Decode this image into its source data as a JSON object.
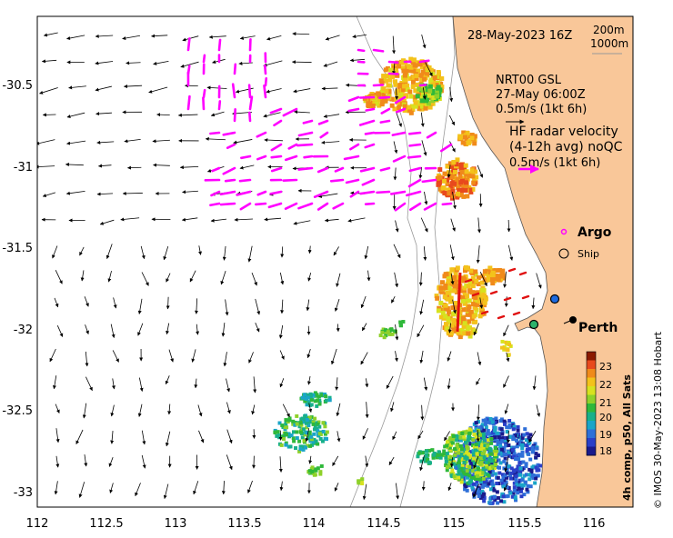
{
  "title": "28-May-2023 16Z",
  "depth_legend": [
    "200m",
    "1000m"
  ],
  "model_label": [
    "NRT00 GSL",
    "27-May 06:00Z",
    "0.5m/s (1kt 6h)"
  ],
  "radar_label": [
    "HF radar velocity",
    "(4-12h avg) noQC",
    "0.5m/s (1kt 6h)"
  ],
  "legend": {
    "argo": "Argo",
    "ship": "Ship"
  },
  "city": "Perth",
  "colorbar": {
    "title": "4h comp, p50, All Sats",
    "ticks": [
      "23",
      "22",
      "21",
      "20",
      "19",
      "18"
    ],
    "colors": [
      "#8b1a00",
      "#e8491d",
      "#f08a1a",
      "#f3c21b",
      "#d7e21f",
      "#8fd12a",
      "#2fb83a",
      "#18b08a",
      "#1aa5c8",
      "#2e6fd8",
      "#2a3fc8",
      "#1a1a8c"
    ]
  },
  "credit": "© IMOS 30-May-2023 13:08 Hobart",
  "axes": {
    "x_ticks": [
      "112",
      "112.5",
      "113",
      "113.5",
      "114",
      "114.5",
      "115",
      "115.5",
      "116"
    ],
    "y_ticks": [
      "-30.5",
      "-31",
      "-31.5",
      "-32",
      "-32.5",
      "-33"
    ],
    "x_range": [
      112,
      116.3
    ],
    "y_range": [
      -30.1,
      -33.1
    ]
  },
  "colors": {
    "land": "#f9c799",
    "argo": "#ff00ff",
    "radar": "#ff00ff",
    "hf_red": "#e01010",
    "ship_fill": "#1e6be0",
    "ship_fill_2": "#2db36b"
  }
}
